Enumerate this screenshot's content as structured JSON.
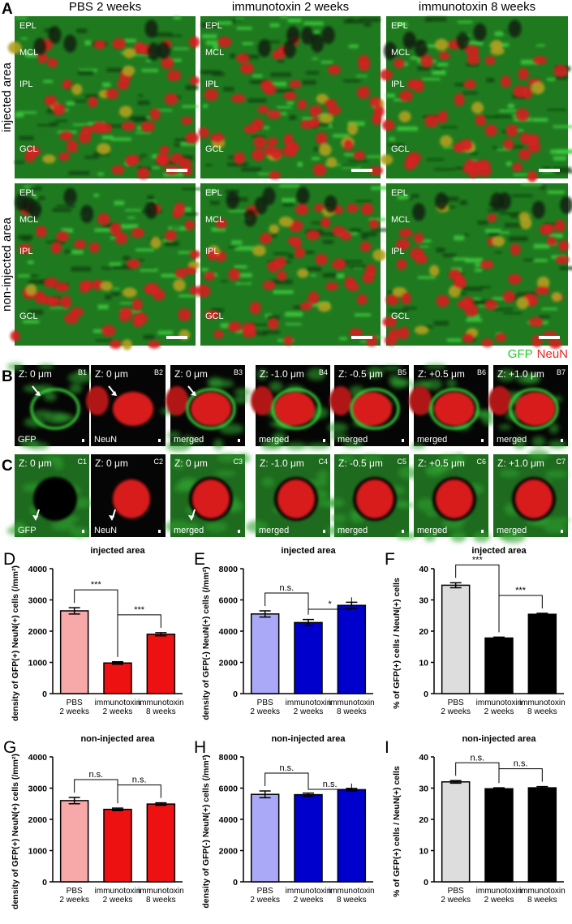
{
  "figure": {
    "panel_a": {
      "label": "A",
      "columns": [
        "PBS 2 weeks",
        "immunotoxin 2 weeks",
        "immunotoxin 8 weeks"
      ],
      "rows": [
        "injected area",
        "non-injected area"
      ],
      "layers": [
        "EPL",
        "MCL",
        "IPL",
        "GCL"
      ],
      "legend": [
        {
          "text": "GFP",
          "color": "#22cc22"
        },
        {
          "text": "NeuN",
          "color": "#ee2222"
        }
      ]
    },
    "panel_b": {
      "label": "B",
      "tiles": [
        {
          "z": "Z: 0 μm",
          "id": "B1",
          "channel": "GFP"
        },
        {
          "z": "Z: 0 μm",
          "id": "B2",
          "channel": "NeuN"
        },
        {
          "z": "Z: 0 μm",
          "id": "B3",
          "channel": "merged"
        },
        {
          "z": "Z: -1.0 μm",
          "id": "B4",
          "channel": "merged"
        },
        {
          "z": "Z: -0.5 μm",
          "id": "B5",
          "channel": "merged"
        },
        {
          "z": "Z: +0.5 μm",
          "id": "B6",
          "channel": "merged"
        },
        {
          "z": "Z: +1.0 μm",
          "id": "B7",
          "channel": "merged"
        }
      ]
    },
    "panel_c": {
      "label": "C",
      "tiles": [
        {
          "z": "Z: 0 μm",
          "id": "C1",
          "channel": "GFP"
        },
        {
          "z": "Z: 0 μm",
          "id": "C2",
          "channel": "NeuN"
        },
        {
          "z": "Z: 0 μm",
          "id": "C3",
          "channel": "merged"
        },
        {
          "z": "Z: -1.0 μm",
          "id": "C4",
          "channel": "merged"
        },
        {
          "z": "Z: -0.5 μm",
          "id": "C5",
          "channel": "merged"
        },
        {
          "z": "Z: +0.5 μm",
          "id": "C6",
          "channel": "merged"
        },
        {
          "z": "Z: +1.0 μm",
          "id": "C7",
          "channel": "merged"
        }
      ]
    }
  },
  "chart_data": [
    {
      "type": "bar",
      "panel": "D",
      "title": "injected area",
      "y_label": "density of GFP(+) NeuN(+) cells (/mm²)",
      "categories": [
        [
          "PBS",
          "2 weeks"
        ],
        [
          "immunotoxin",
          "2 weeks"
        ],
        [
          "immunotoxin",
          "8 weeks"
        ]
      ],
      "values": [
        2650,
        980,
        1900
      ],
      "errors": [
        100,
        40,
        50
      ],
      "colors": [
        "#f7a8a8",
        "#ee1111",
        "#ee1111"
      ],
      "ylim": [
        0,
        4000
      ],
      "yticks": [
        0,
        1000,
        2000,
        3000,
        4000
      ],
      "significance": [
        {
          "between": [
            0,
            1
          ],
          "label": "***"
        },
        {
          "between": [
            1,
            2
          ],
          "label": "***"
        }
      ]
    },
    {
      "type": "bar",
      "panel": "E",
      "title": "injected area",
      "y_label": "density of GFP(-) NeuN(+) cells (/mm²)",
      "categories": [
        [
          "PBS",
          "2 weeks"
        ],
        [
          "immunotoxin",
          "2 weeks"
        ],
        [
          "immunotoxin",
          "8 weeks"
        ]
      ],
      "values": [
        5100,
        4550,
        5650
      ],
      "errors": [
        200,
        200,
        200
      ],
      "colors": [
        "#a9a9f7",
        "#0000cc",
        "#0000cc"
      ],
      "ylim": [
        0,
        8000
      ],
      "yticks": [
        0,
        2000,
        4000,
        6000,
        8000
      ],
      "significance": [
        {
          "between": [
            0,
            1
          ],
          "label": "n.s."
        },
        {
          "between": [
            1,
            2
          ],
          "label": "*"
        }
      ]
    },
    {
      "type": "bar",
      "panel": "F",
      "title": "injected area",
      "y_label": "% of GFP(+) cells / NeuN(+) cells",
      "categories": [
        [
          "PBS",
          "2 weeks"
        ],
        [
          "immunotoxin",
          "2 weeks"
        ],
        [
          "immunotoxin",
          "8 weeks"
        ]
      ],
      "values": [
        34.7,
        17.8,
        25.4
      ],
      "errors": [
        0.8,
        0.3,
        0.3
      ],
      "colors": [
        "#dddddd",
        "#000000",
        "#000000"
      ],
      "ylim": [
        0,
        40
      ],
      "yticks": [
        0,
        10,
        20,
        30,
        40
      ],
      "significance": [
        {
          "between": [
            0,
            1
          ],
          "label": "***"
        },
        {
          "between": [
            1,
            2
          ],
          "label": "***"
        }
      ]
    },
    {
      "type": "bar",
      "panel": "G",
      "title": "non-injected area",
      "y_label": "density of GFP(+) NeuN(+) cells (/mm²)",
      "categories": [
        [
          "PBS",
          "2 weeks"
        ],
        [
          "immunotoxin",
          "2 weeks"
        ],
        [
          "immunotoxin",
          "8 weeks"
        ]
      ],
      "values": [
        2600,
        2320,
        2490
      ],
      "errors": [
        100,
        40,
        40
      ],
      "colors": [
        "#f7a8a8",
        "#ee1111",
        "#ee1111"
      ],
      "ylim": [
        0,
        4000
      ],
      "yticks": [
        0,
        1000,
        2000,
        3000,
        4000
      ],
      "significance": [
        {
          "between": [
            0,
            1
          ],
          "label": "n.s."
        },
        {
          "between": [
            1,
            2
          ],
          "label": "n.s."
        }
      ]
    },
    {
      "type": "bar",
      "panel": "H",
      "title": "non-injected area",
      "y_label": "density of GFP(-) NeuN(+) cells (/mm²)",
      "categories": [
        [
          "PBS",
          "2 weeks"
        ],
        [
          "immunotoxin",
          "2 weeks"
        ],
        [
          "immunotoxin",
          "8 weeks"
        ]
      ],
      "values": [
        5600,
        5580,
        5900
      ],
      "errors": [
        220,
        100,
        80
      ],
      "colors": [
        "#a9a9f7",
        "#0000cc",
        "#0000cc"
      ],
      "ylim": [
        0,
        8000
      ],
      "yticks": [
        0,
        2000,
        4000,
        6000,
        8000
      ],
      "significance": [
        {
          "between": [
            0,
            1
          ],
          "label": "n.s."
        },
        {
          "between": [
            1,
            2
          ],
          "label": "n.s."
        }
      ]
    },
    {
      "type": "bar",
      "panel": "I",
      "title": "non-injected area",
      "y_label": "% of GFP(+) cells / NeuN(+) cells",
      "categories": [
        [
          "PBS",
          "2 weeks"
        ],
        [
          "immunotoxin",
          "2 weeks"
        ],
        [
          "immunotoxin",
          "8 weeks"
        ]
      ],
      "values": [
        32.0,
        29.8,
        30.1
      ],
      "errors": [
        0.4,
        0.3,
        0.4
      ],
      "colors": [
        "#dddddd",
        "#000000",
        "#000000"
      ],
      "ylim": [
        0,
        40
      ],
      "yticks": [
        0,
        10,
        20,
        30,
        40
      ],
      "significance": [
        {
          "between": [
            0,
            1
          ],
          "label": "n.s."
        },
        {
          "between": [
            1,
            2
          ],
          "label": "n.s."
        }
      ]
    }
  ]
}
